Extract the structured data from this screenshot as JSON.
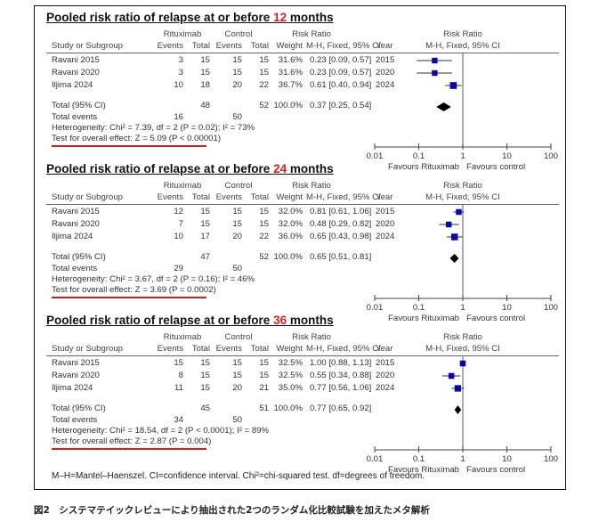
{
  "headers": {
    "study": "Study or Subgroup",
    "rituximab": "Rituximab",
    "control": "Control",
    "events": "Events",
    "total": "Total",
    "weight": "Weight",
    "risk_ratio": "Risk Ratio",
    "method": "M-H, Fixed, 95% CI",
    "year": "Year",
    "plot_title": "Risk Ratio",
    "plot_method": "M-H, Fixed, 95% CI",
    "total_label": "Total (95% CI)",
    "total_events_label": "Total events"
  },
  "axis": {
    "ticks": [
      "0.01",
      "0.1",
      "1",
      "10",
      "100"
    ],
    "favours_left": "Favours Rituximab",
    "favours_right": "Favours control"
  },
  "colors": {
    "accent": "#d42020",
    "marker": "#0a0aa8",
    "diamond": "#000000"
  },
  "chart_data": [
    {
      "type": "forest",
      "title_prefix": "Pooled risk ratio of relapse at or before ",
      "title_highlight": "12",
      "title_suffix": " months",
      "xscale": "log",
      "xlim": [
        0.01,
        100
      ],
      "studies": [
        {
          "name": "Ravani 2015",
          "r_events": "3",
          "r_total": "15",
          "c_events": "15",
          "c_total": "15",
          "weight": "31.6%",
          "rr_text": "0.23 [0.09, 0.57]",
          "year": "2015",
          "rr": 0.23,
          "lo": 0.09,
          "hi": 0.57
        },
        {
          "name": "Ravani 2020",
          "r_events": "3",
          "r_total": "15",
          "c_events": "15",
          "c_total": "15",
          "weight": "31.6%",
          "rr_text": "0.23 [0.09, 0.57]",
          "year": "2020",
          "rr": 0.23,
          "lo": 0.09,
          "hi": 0.57
        },
        {
          "name": "Iljima 2024",
          "r_events": "10",
          "r_total": "18",
          "c_events": "20",
          "c_total": "22",
          "weight": "36.7%",
          "rr_text": "0.61 [0.40, 0.94]",
          "year": "2024",
          "rr": 0.61,
          "lo": 0.4,
          "hi": 0.94
        }
      ],
      "total": {
        "r_total": "48",
        "c_total": "52",
        "weight": "100.0%",
        "rr_text": "0.37 [0.25, 0.54]",
        "rr": 0.37,
        "lo": 0.25,
        "hi": 0.54
      },
      "total_events": {
        "r": "16",
        "c": "50"
      },
      "heterogeneity": "Heterogeneity: Chi² = 7.39, df = 2 (P = 0.02); I² = 73%",
      "overall_effect": "Test for overall effect: Z = 5.09 (P < 0.00001)"
    },
    {
      "type": "forest",
      "title_prefix": "Pooled risk ratio of relapse at or before ",
      "title_highlight": "24",
      "title_suffix": " months",
      "xscale": "log",
      "xlim": [
        0.01,
        100
      ],
      "studies": [
        {
          "name": "Ravani 2015",
          "r_events": "12",
          "r_total": "15",
          "c_events": "15",
          "c_total": "15",
          "weight": "32.0%",
          "rr_text": "0.81 [0.61, 1.06]",
          "year": "2015",
          "rr": 0.81,
          "lo": 0.61,
          "hi": 1.06
        },
        {
          "name": "Ravani 2020",
          "r_events": "7",
          "r_total": "15",
          "c_events": "15",
          "c_total": "15",
          "weight": "32.0%",
          "rr_text": "0.48 [0.29, 0.82]",
          "year": "2020",
          "rr": 0.48,
          "lo": 0.29,
          "hi": 0.82
        },
        {
          "name": "Iljima 2024",
          "r_events": "10",
          "r_total": "17",
          "c_events": "20",
          "c_total": "22",
          "weight": "36.0%",
          "rr_text": "0.65 [0.43, 0.98]",
          "year": "2024",
          "rr": 0.65,
          "lo": 0.43,
          "hi": 0.98
        }
      ],
      "total": {
        "r_total": "47",
        "c_total": "52",
        "weight": "100.0%",
        "rr_text": "0.65 [0.51, 0.81]",
        "rr": 0.65,
        "lo": 0.51,
        "hi": 0.81
      },
      "total_events": {
        "r": "29",
        "c": "50"
      },
      "heterogeneity": "Heterogeneity: Chi² = 3.67, df = 2 (P = 0.16); I² = 46%",
      "overall_effect": "Test for overall effect: Z = 3.69 (P = 0.0002)"
    },
    {
      "type": "forest",
      "title_prefix": "Pooled risk ratio of relapse at or before ",
      "title_highlight": "36",
      "title_suffix": " months",
      "xscale": "log",
      "xlim": [
        0.01,
        100
      ],
      "studies": [
        {
          "name": "Ravani 2015",
          "r_events": "15",
          "r_total": "15",
          "c_events": "15",
          "c_total": "15",
          "weight": "32.5%",
          "rr_text": "1.00 [0.88, 1.13]",
          "year": "2015",
          "rr": 1.0,
          "lo": 0.88,
          "hi": 1.13
        },
        {
          "name": "Ravani 2020",
          "r_events": "8",
          "r_total": "15",
          "c_events": "15",
          "c_total": "15",
          "weight": "32.5%",
          "rr_text": "0.55 [0.34, 0.88]",
          "year": "2020",
          "rr": 0.55,
          "lo": 0.34,
          "hi": 0.88
        },
        {
          "name": "Iljima 2024",
          "r_events": "11",
          "r_total": "15",
          "c_events": "20",
          "c_total": "21",
          "weight": "35.0%",
          "rr_text": "0.77 [0.56, 1.06]",
          "year": "2024",
          "rr": 0.77,
          "lo": 0.56,
          "hi": 1.06
        }
      ],
      "total": {
        "r_total": "45",
        "c_total": "51",
        "weight": "100.0%",
        "rr_text": "0.77 [0.65, 0.92]",
        "rr": 0.77,
        "lo": 0.65,
        "hi": 0.92
      },
      "total_events": {
        "r": "34",
        "c": "50"
      },
      "heterogeneity": "Heterogeneity: Chi² = 18.54, df = 2 (P < 0.0001); I² = 89%",
      "overall_effect": "Test for overall effect: Z = 2.87 (P = 0.004)"
    }
  ],
  "footnote": "M–H=Mantel–Haenszel. CI=confidence interval. Chi²=chi-squared test. df=degrees of freedom.",
  "caption": "図2　システマテイックレビューにより抽出された2つのランダム化比較試験を加えたメタ解析"
}
